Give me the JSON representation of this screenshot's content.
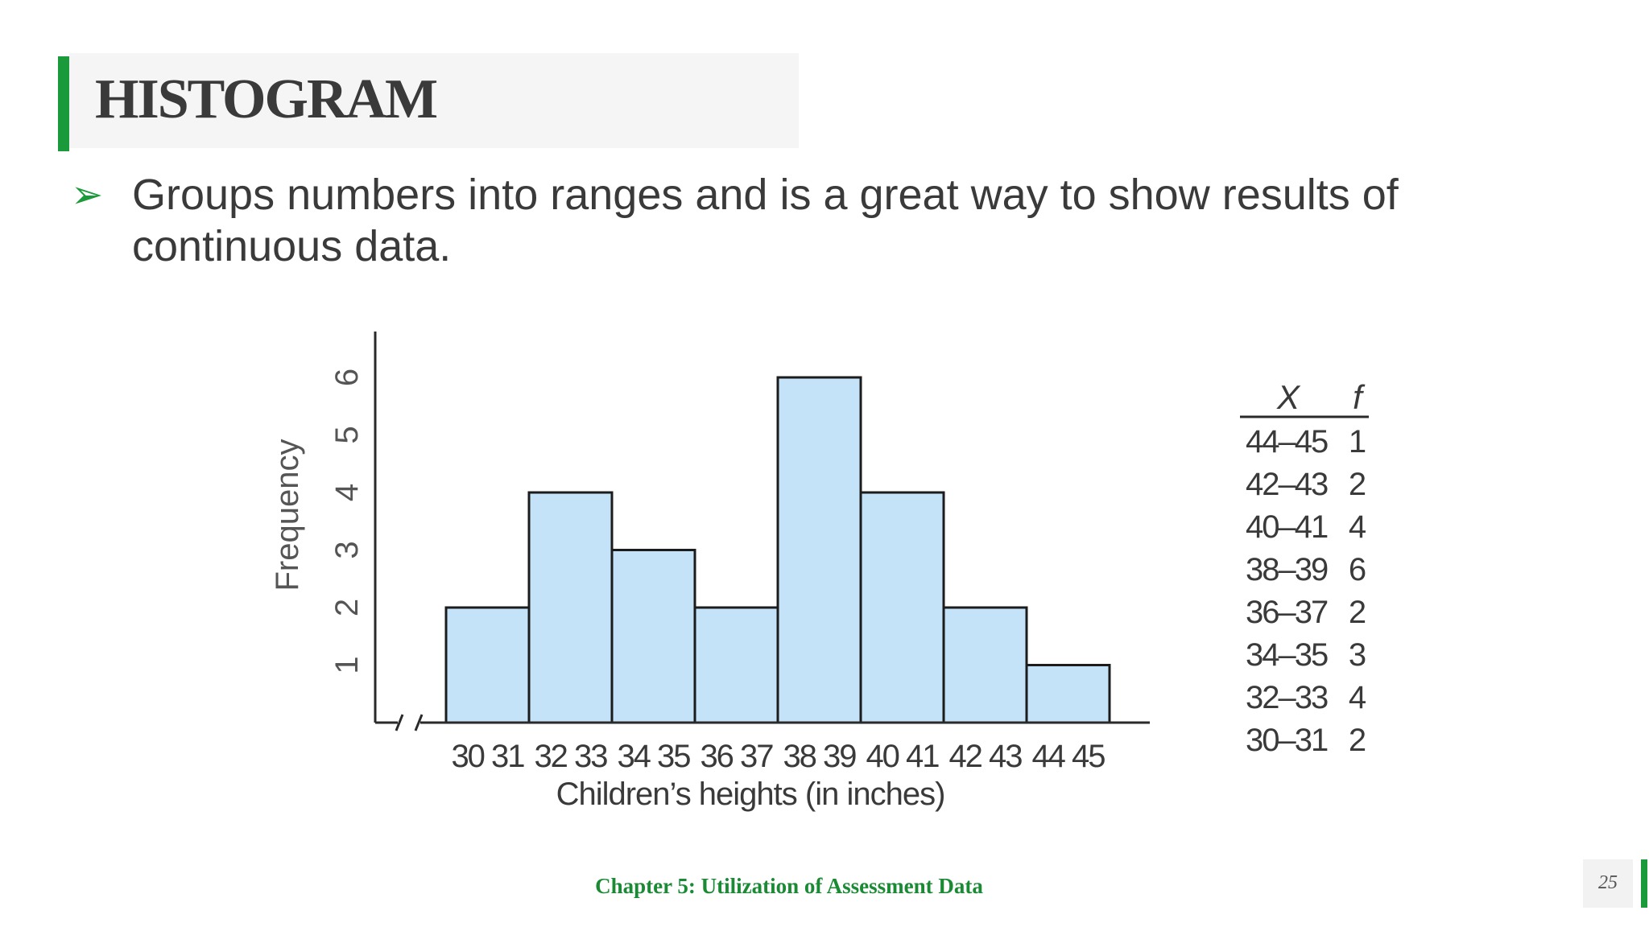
{
  "slide": {
    "title": "HISTOGRAM",
    "bullet_icon": "arrow-right-icon",
    "bullet_symbol": "➢",
    "bullet_text": "Groups numbers into ranges and is a great way to show results of continuous data.",
    "footer": "Chapter 5: Utilization of Assessment Data",
    "page_number": "25",
    "accent_color": "#1a9a3a"
  },
  "chart_data": {
    "type": "bar",
    "categories": [
      "30 31",
      "32 33",
      "34 35",
      "36 37",
      "38 39",
      "40 41",
      "42 43",
      "44 45"
    ],
    "values": [
      2,
      4,
      3,
      2,
      6,
      4,
      2,
      1
    ],
    "xlabel": "Children’s heights (in inches)",
    "ylabel": "Frequency",
    "yticks": [
      "1",
      "2",
      "3",
      "4",
      "5",
      "6"
    ],
    "ylim": [
      0,
      6
    ],
    "bar_color": "#c5e3f8",
    "axis_break": true,
    "table": {
      "headers": [
        "X",
        "f"
      ],
      "rows": [
        [
          "44–45",
          "1"
        ],
        [
          "42–43",
          "2"
        ],
        [
          "40–41",
          "4"
        ],
        [
          "38–39",
          "6"
        ],
        [
          "36–37",
          "2"
        ],
        [
          "34–35",
          "3"
        ],
        [
          "32–33",
          "4"
        ],
        [
          "30–31",
          "2"
        ]
      ]
    }
  }
}
